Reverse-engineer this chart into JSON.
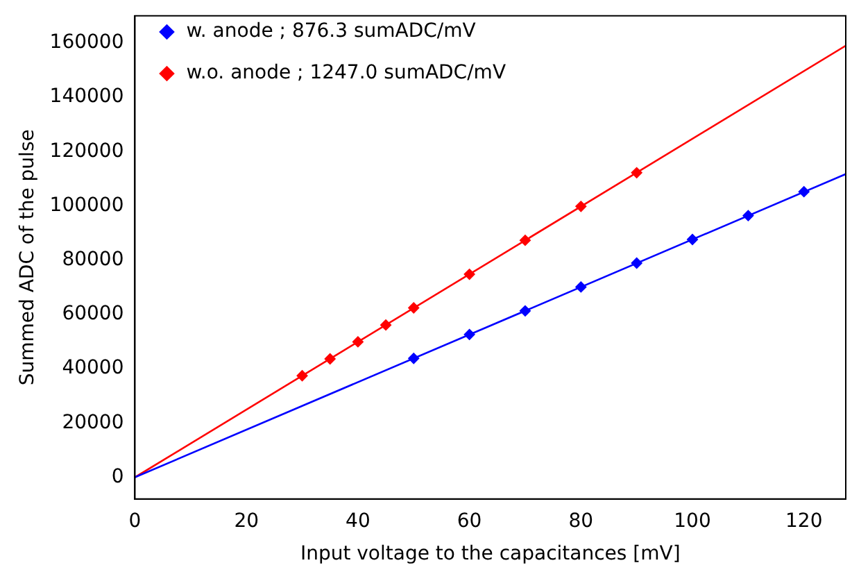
{
  "chart_data": {
    "type": "scatter",
    "xlabel": "Input voltage to the capacitances [mV]",
    "ylabel": "Summed ADC of the pulse",
    "xlim": [
      0,
      127.5
    ],
    "xticks": [
      0,
      20,
      40,
      60,
      80,
      100,
      120
    ],
    "ylim": [
      -8000,
      170000
    ],
    "yticks": [
      0,
      20000,
      40000,
      60000,
      80000,
      100000,
      120000,
      140000,
      160000
    ],
    "grid": false,
    "legend": "top left",
    "series": [
      {
        "name": "w. anode ; 876.3 sumADC/mV",
        "color": "#0000ff",
        "marker": "diamond",
        "x": [
          50,
          60,
          70,
          80,
          90,
          100,
          110,
          120
        ],
        "values": [
          43800,
          52600,
          61300,
          70100,
          78900,
          87600,
          96400,
          105200
        ]
      },
      {
        "name": "w.o. anode ; 1247.0 sumADC/mV",
        "color": "#ff0000",
        "marker": "diamond",
        "x": [
          30,
          35,
          40,
          45,
          50,
          60,
          70,
          80,
          90
        ],
        "values": [
          37400,
          43600,
          49900,
          56100,
          62400,
          74800,
          87300,
          99800,
          112200
        ]
      },
      {
        "type": "line",
        "color": "#0000ff",
        "marker": "none",
        "x": [
          0,
          127.5
        ],
        "values": [
          0,
          111700
        ]
      },
      {
        "type": "line",
        "color": "#ff0000",
        "marker": "none",
        "x": [
          0,
          127.5
        ],
        "values": [
          0,
          159000
        ]
      }
    ]
  }
}
